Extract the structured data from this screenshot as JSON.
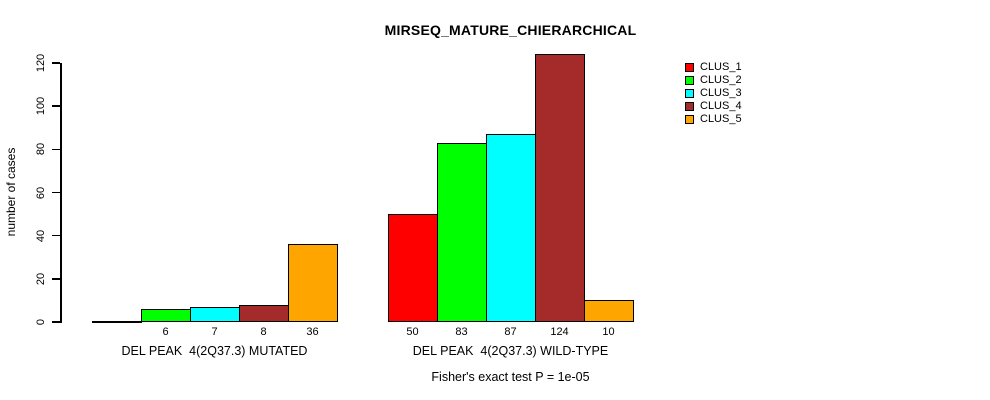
{
  "chart_data": {
    "type": "bar",
    "title": "MIRSEQ_MATURE_CHIERARCHICAL",
    "xlabel": "",
    "ylabel": "number of cases",
    "ylim": [
      0,
      120
    ],
    "yticks": [
      0,
      20,
      40,
      60,
      80,
      100,
      120
    ],
    "grid": false,
    "series": [
      {
        "name": "CLUS_1",
        "color": "#ff0000",
        "values": [
          0,
          50
        ]
      },
      {
        "name": "CLUS_2",
        "color": "#00ff00",
        "values": [
          6,
          83
        ]
      },
      {
        "name": "CLUS_3",
        "color": "#00ffff",
        "values": [
          7,
          87
        ]
      },
      {
        "name": "CLUS_4",
        "color": "#a52a2a",
        "values": [
          8,
          124
        ]
      },
      {
        "name": "CLUS_5",
        "color": "#ffa500",
        "values": [
          36,
          10
        ]
      }
    ],
    "groups": [
      {
        "label": "DEL PEAK  4(2Q37.3) MUTATED",
        "values": [
          0,
          6,
          7,
          8,
          36
        ],
        "bar_labels": [
          "",
          "6",
          "7",
          "8",
          "36"
        ]
      },
      {
        "label": "DEL PEAK  4(2Q37.3) WILD-TYPE",
        "values": [
          50,
          83,
          87,
          124,
          10
        ],
        "bar_labels": [
          "50",
          "83",
          "87",
          "124",
          "10"
        ]
      }
    ],
    "annotation": "Fisher's exact test P = 1e-05",
    "legend_position": "top-right"
  },
  "legend": {
    "entries": [
      {
        "label": "CLUS_1",
        "color": "#ff0000"
      },
      {
        "label": "CLUS_2",
        "color": "#00ff00"
      },
      {
        "label": "CLUS_3",
        "color": "#00ffff"
      },
      {
        "label": "CLUS_4",
        "color": "#a52a2a"
      },
      {
        "label": "CLUS_5",
        "color": "#ffa500"
      }
    ]
  }
}
